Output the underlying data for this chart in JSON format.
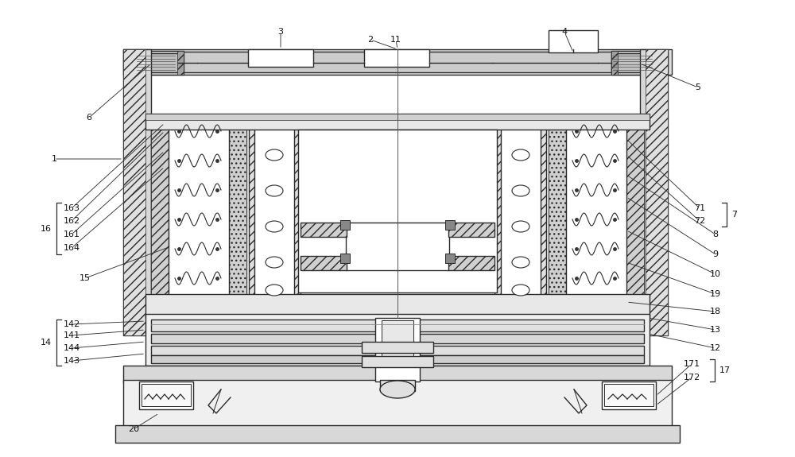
{
  "figsize": [
    10.0,
    5.75
  ],
  "dpi": 100,
  "lc": "#2a2a2a",
  "fc_light": "#e8e8e8",
  "fc_mid": "#d0d0d0",
  "fc_dark": "#b0b0b0",
  "fc_white": "#ffffff"
}
